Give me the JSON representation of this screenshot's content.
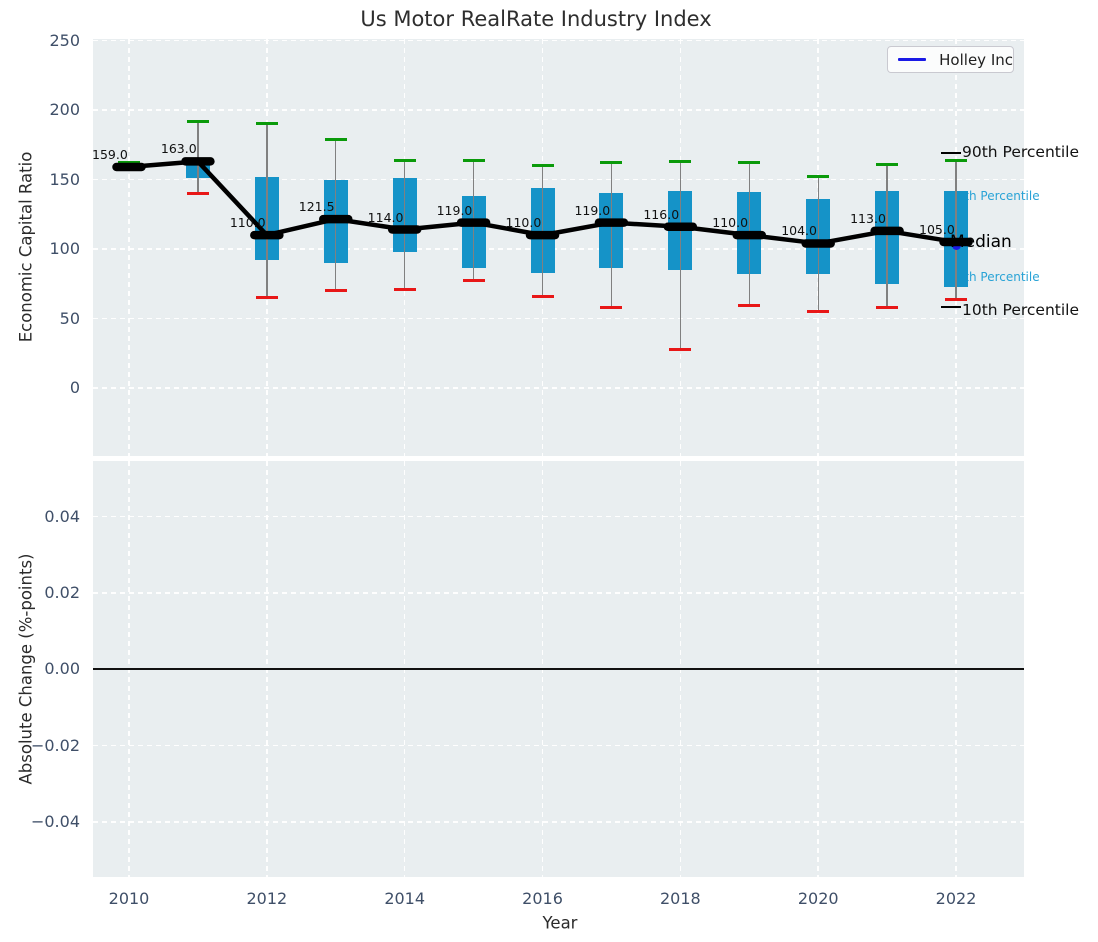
{
  "title": "Us Motor RealRate Industry Index",
  "legend": {
    "label": "Holley Inc",
    "line_color": "#1a1ae6"
  },
  "annotations": {
    "p90": "90th Percentile",
    "p75": "75th Percentile",
    "median": "Median",
    "p25": "25th Percentile",
    "p10": "10th Percentile"
  },
  "axes": {
    "top": {
      "ylabel": "Economic Capital Ratio"
    },
    "bottom": {
      "ylabel": "Absolute Change (%-points)"
    },
    "x": {
      "label": "Year"
    }
  },
  "colors": {
    "box": "#1593c8",
    "cap_high": "#0a9a0a",
    "cap_low": "#e81717",
    "whisker": "#808080",
    "median": "#000000",
    "holley_blue": "#1a1ae6",
    "annotation_cyan": "#29a3d6",
    "tick_label": "#3f4f68",
    "axes_bg": "#e9eef0"
  },
  "chart_data": [
    {
      "type": "boxplot",
      "title": "Us Motor RealRate Industry Index",
      "xlabel": "Year",
      "ylabel": "Economic Capital Ratio",
      "legend_entries": [
        "Holley Inc"
      ],
      "legend_position": "upper right",
      "grid": true,
      "ylim": [
        -49,
        252
      ],
      "yticks": [
        {
          "v": 250,
          "label": "250"
        },
        {
          "v": 200,
          "label": "200"
        },
        {
          "v": 150,
          "label": "150"
        },
        {
          "v": 100,
          "label": "100"
        },
        {
          "v": 50,
          "label": "50"
        },
        {
          "v": 0,
          "label": "0"
        }
      ],
      "xticks": [
        {
          "v": 2010,
          "label": "2010"
        },
        {
          "v": 2012,
          "label": "2012"
        },
        {
          "v": 2014,
          "label": "2014"
        },
        {
          "v": 2016,
          "label": "2016"
        },
        {
          "v": 2018,
          "label": "2018"
        },
        {
          "v": 2020,
          "label": "2020"
        },
        {
          "v": 2022,
          "label": "2022"
        }
      ],
      "years": [
        2010,
        2011,
        2012,
        2013,
        2014,
        2015,
        2016,
        2017,
        2018,
        2019,
        2020,
        2021,
        2022
      ],
      "median": [
        159,
        163,
        110,
        121.5,
        114,
        119,
        110,
        119,
        116,
        110,
        104,
        113,
        105
      ],
      "median_labels": [
        "159.0",
        "163.0",
        "110.0",
        "121.5",
        "114.0",
        "119.0",
        "110.0",
        "119.0",
        "116.0",
        "110.0",
        "104.0",
        "113.0",
        "105.0"
      ],
      "q1": [
        157,
        151,
        92,
        90,
        98,
        86,
        83,
        86,
        85,
        82,
        82,
        75,
        73
      ],
      "q3": [
        161,
        165,
        152,
        150,
        151,
        138,
        144,
        140,
        142,
        141,
        136,
        142,
        142
      ],
      "p90": [
        162,
        192,
        190,
        179,
        164,
        164,
        160,
        162,
        163,
        162,
        152,
        161,
        164
      ],
      "p10": [
        157,
        140,
        65,
        70,
        71,
        77,
        66,
        58,
        28,
        59,
        55,
        58,
        64
      ],
      "holley_point": {
        "year": 2022,
        "value": 105
      }
    },
    {
      "type": "line",
      "xlabel": "Year",
      "ylabel": "Absolute Change (%-points)",
      "grid": true,
      "ylim": [
        -0.055,
        0.055
      ],
      "yticks": [
        {
          "v": 0.04,
          "label": "0.04"
        },
        {
          "v": 0.02,
          "label": "0.02"
        },
        {
          "v": 0,
          "label": "0.00"
        },
        {
          "v": -0.02,
          "label": "−0.02"
        },
        {
          "v": -0.04,
          "label": "−0.04"
        }
      ],
      "xticks": [
        {
          "v": 2010,
          "label": "2010"
        },
        {
          "v": 2012,
          "label": "2012"
        },
        {
          "v": 2014,
          "label": "2014"
        },
        {
          "v": 2016,
          "label": "2016"
        },
        {
          "v": 2018,
          "label": "2018"
        },
        {
          "v": 2020,
          "label": "2020"
        },
        {
          "v": 2022,
          "label": "2022"
        }
      ],
      "series": [
        {
          "name": "Holley Inc",
          "x": [],
          "y": []
        }
      ],
      "zero_line": 0
    }
  ]
}
